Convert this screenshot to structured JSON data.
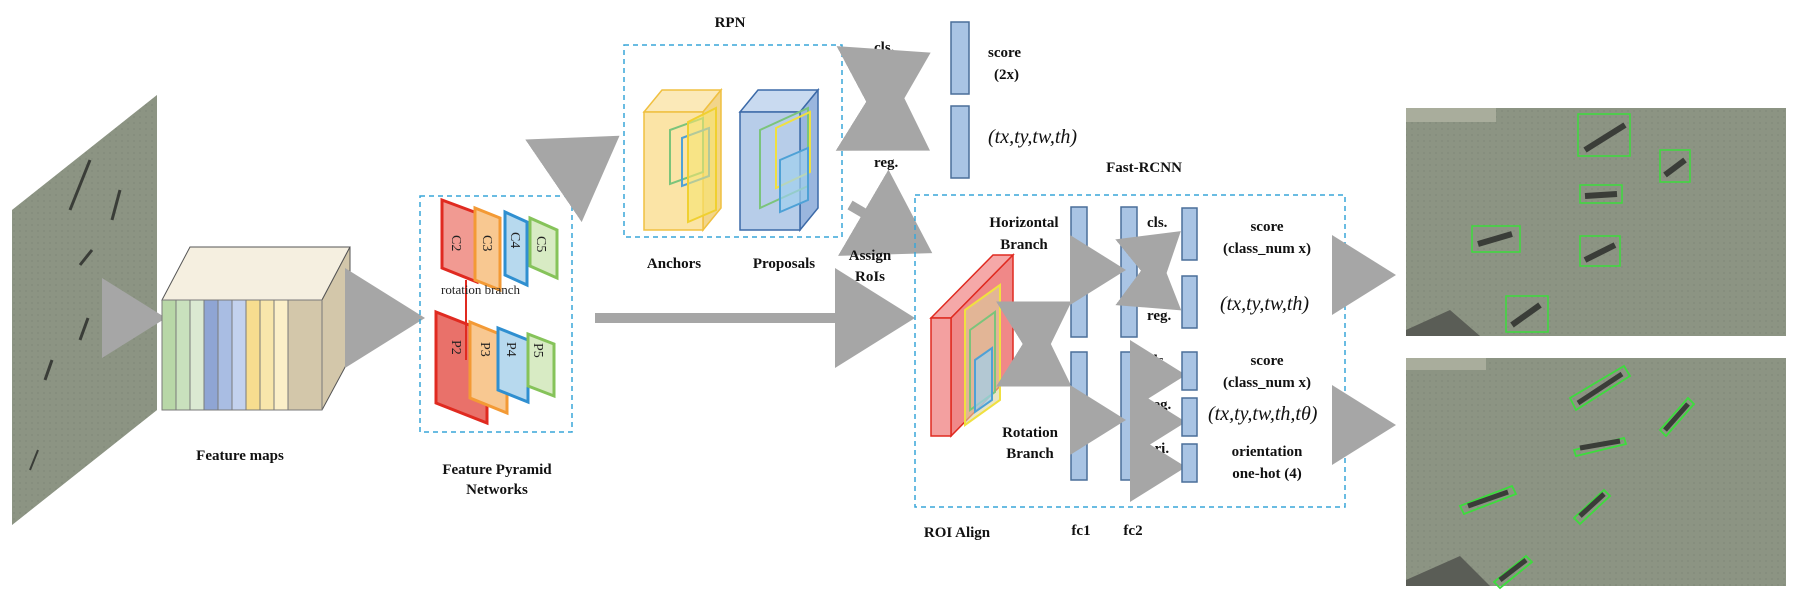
{
  "labels": {
    "feature_maps": "Feature maps",
    "fpn_line1": "Feature Pyramid",
    "fpn_line2": "Networks",
    "rpn": "RPN",
    "anchors": "Anchors",
    "proposals": "Proposals",
    "cls": "cls.",
    "reg": "reg.",
    "ori": "ori.",
    "score": "score",
    "score_2x": "(2x)",
    "rpn_reg_out": "(tx,ty,tw,th)",
    "assign1": "Assign",
    "assign2": "RoIs",
    "fast_rcnn": "Fast-RCNN",
    "horizontal1": "Horizontal",
    "horizontal2": "Branch",
    "rotation1": "Rotation",
    "rotation2": "Branch",
    "class_num": "(class_num x)",
    "h_reg_out": "(tx,ty,tw,th)",
    "r_reg_out": "(tx,ty,tw,th,tθ)",
    "orientation1": "orientation",
    "orientation2": "one-hot (4)",
    "roi_align": "ROI Align",
    "fc1": "fc1",
    "fc2": "fc2",
    "rotation_branch_fpn": "rotation branch",
    "c2": "C2",
    "c3": "C3",
    "c4": "C4",
    "c5": "C5",
    "p2": "P2",
    "p3": "P3",
    "p4": "P4",
    "p5": "P5"
  },
  "colors": {
    "arrow": "#a6a6a6",
    "dashed_box": "#39a6d8",
    "fc_fill": "#a9c4e4",
    "fc_stroke": "#4a6f9a",
    "green_box": "#3ddc3d",
    "blue_text": "#1a1aff"
  }
}
